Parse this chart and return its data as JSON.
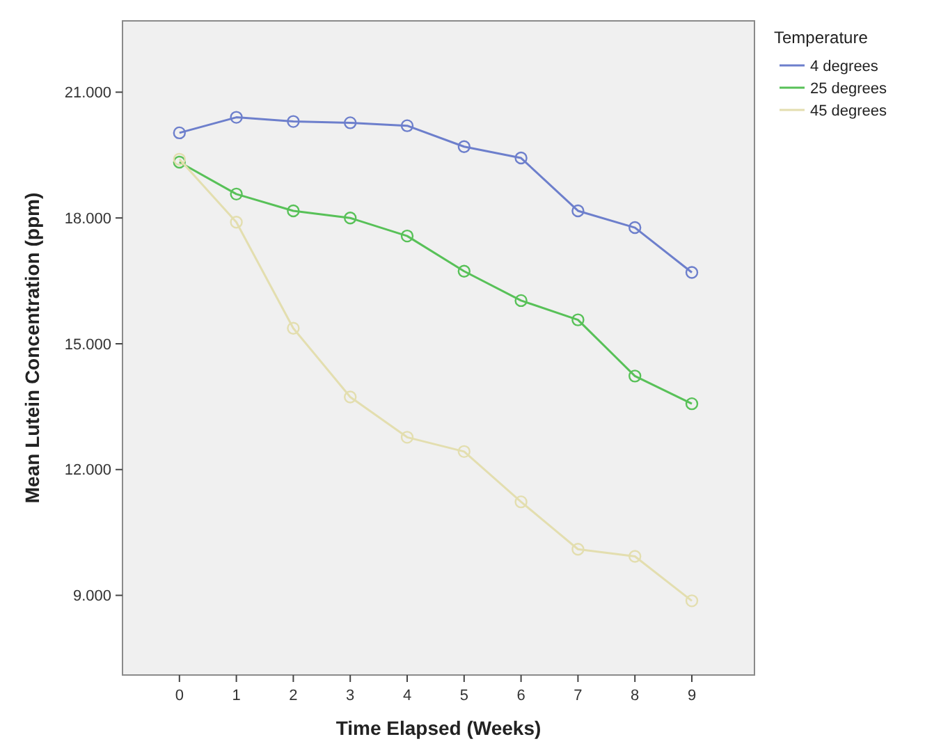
{
  "chart_data": {
    "type": "line",
    "xlabel": "Time Elapsed (Weeks)",
    "ylabel": "Mean Lutein Concentration (ppm)",
    "legend_title": "Temperature",
    "x": [
      0,
      1,
      2,
      3,
      4,
      5,
      6,
      7,
      8,
      9
    ],
    "series": [
      {
        "name": "4 degrees",
        "color": "#6d7fcc",
        "values": [
          20030,
          20400,
          20300,
          20270,
          20200,
          19700,
          19430,
          18170,
          17770,
          16700
        ]
      },
      {
        "name": "25 degrees",
        "color": "#58c158",
        "values": [
          19330,
          18570,
          18170,
          18000,
          17570,
          16730,
          16030,
          15570,
          14230,
          13570
        ]
      },
      {
        "name": "45 degrees",
        "color": "#e3deaf",
        "values": [
          19400,
          17900,
          15370,
          13730,
          12770,
          12430,
          11230,
          10100,
          9930,
          8870
        ]
      }
    ],
    "xlim": [
      -1,
      10.1
    ],
    "xticks": [
      0,
      1,
      2,
      3,
      4,
      5,
      6,
      7,
      8,
      9
    ],
    "ylim": [
      7100,
      22700
    ],
    "yticks": [
      {
        "value": 9000,
        "label": "9.000"
      },
      {
        "value": 12000,
        "label": "12.000"
      },
      {
        "value": 15000,
        "label": "15.000"
      },
      {
        "value": 18000,
        "label": "18.000"
      },
      {
        "value": 21000,
        "label": "21.000"
      }
    ],
    "grid": false,
    "legend": "top right",
    "marker": "circle",
    "line_style": "solid"
  }
}
